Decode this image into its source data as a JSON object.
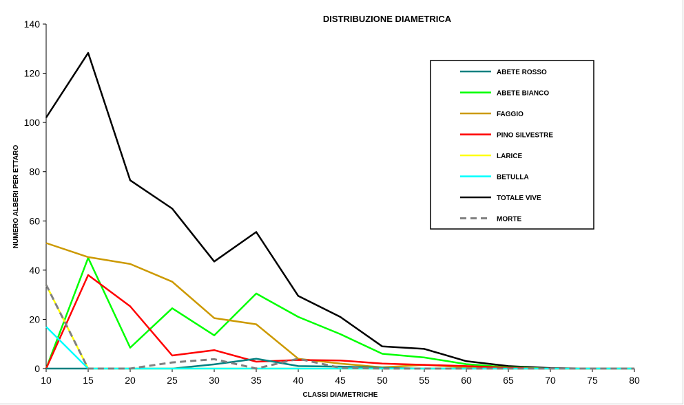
{
  "chart_data": {
    "type": "line",
    "title": "DISTRIBUZIONE  DIAMETRICA",
    "xlabel": "CLASSI DIAMETRICHE",
    "ylabel": "NUMERO ALBERI PER ETTARO",
    "xlim": [
      10,
      80
    ],
    "ylim": [
      0,
      140
    ],
    "x": [
      10,
      15,
      20,
      25,
      30,
      35,
      40,
      45,
      50,
      55,
      60,
      65,
      70,
      75,
      80
    ],
    "x_ticks": [
      "10",
      "15",
      "20",
      "25",
      "30",
      "35",
      "40",
      "45",
      "50",
      "55",
      "60",
      "65",
      "70",
      "75",
      "80"
    ],
    "y_ticks": [
      "0",
      "20",
      "40",
      "60",
      "80",
      "100",
      "120",
      "140"
    ],
    "grid": false,
    "legend_position": "top-right",
    "series": [
      {
        "name": "ABETE ROSSO",
        "color": "#008080",
        "dashed": false,
        "values": [
          0,
          0,
          0,
          0,
          1.7,
          4,
          1,
          0.8,
          0.3,
          0,
          0,
          0,
          0,
          0,
          0
        ]
      },
      {
        "name": "ABETE BIANCO",
        "color": "#00ff00",
        "dashed": false,
        "values": [
          0,
          45,
          8.5,
          24.5,
          13.5,
          30.5,
          21,
          14,
          6,
          4.5,
          1.8,
          0.5,
          0,
          0,
          0
        ]
      },
      {
        "name": "FAGGIO",
        "color": "#cc9900",
        "dashed": false,
        "values": [
          51,
          45.3,
          42.5,
          35.3,
          20.5,
          18,
          4,
          2,
          0.5,
          1.5,
          0.5,
          0,
          0,
          0,
          0
        ]
      },
      {
        "name": "PINO SILVESTRE",
        "color": "#ff0000",
        "dashed": false,
        "values": [
          0,
          38,
          25.3,
          5.3,
          7.5,
          2.8,
          3.5,
          3.3,
          2,
          1.5,
          1,
          0.3,
          0,
          0,
          0
        ]
      },
      {
        "name": "LARICE",
        "color": "#ffff00",
        "dashed": false,
        "values": [
          34,
          0,
          0,
          0,
          0,
          0,
          0,
          0,
          0,
          0,
          0,
          0,
          0,
          0,
          0
        ]
      },
      {
        "name": "BETULLA",
        "color": "#00ffff",
        "dashed": false,
        "values": [
          17,
          0,
          0,
          0,
          0,
          0,
          0,
          0,
          0,
          0,
          0,
          0,
          0,
          0,
          0
        ]
      },
      {
        "name": "TOTALE VIVE",
        "color": "#000000",
        "dashed": false,
        "values": [
          102,
          128.3,
          76.5,
          65,
          43.5,
          55.5,
          29.5,
          21,
          9,
          8,
          3,
          1,
          0.2,
          0,
          0
        ]
      },
      {
        "name": "MORTE",
        "color": "#808080",
        "dashed": true,
        "values": [
          34,
          0,
          0,
          2.5,
          3.8,
          0,
          4,
          0.3,
          0,
          0,
          0,
          0,
          0,
          0,
          0
        ]
      }
    ],
    "baseline_series": {
      "color": "#ff00ff",
      "values": [
        0,
        0,
        0,
        0,
        0,
        0,
        0,
        0,
        0,
        0,
        0,
        0,
        0,
        0,
        0
      ]
    }
  }
}
